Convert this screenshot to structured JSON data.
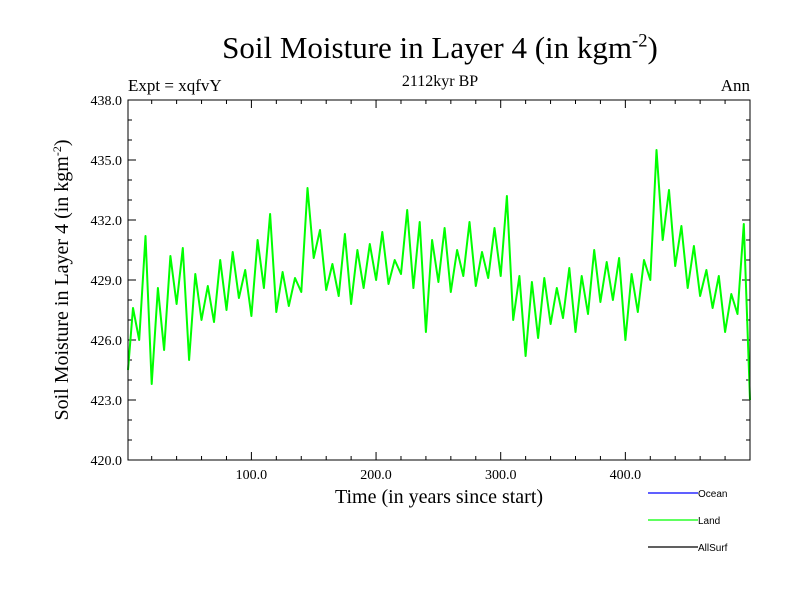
{
  "chart_data": {
    "type": "line",
    "title": "Soil Moisture in Layer 4 (in kgm",
    "title_sup": "-2",
    "title_end": ")",
    "subtitle": "2112kyr BP",
    "left_label": "Expt = xqfvY",
    "right_label": "Ann",
    "xlabel": "Time (in years since start)",
    "ylabel": "Soil Moisture in Layer 4 (in kgm",
    "ylabel_sup": "-2",
    "ylabel_end": ")",
    "xlim": [
      1,
      500
    ],
    "ylim": [
      420.0,
      438.0
    ],
    "xticks": [
      100.0,
      200.0,
      300.0,
      400.0
    ],
    "xtick_labels": [
      "100.0",
      "200.0",
      "300.0",
      "400.0"
    ],
    "yticks": [
      420.0,
      423.0,
      426.0,
      429.0,
      432.0,
      435.0,
      438.0
    ],
    "ytick_labels": [
      "420.0",
      "423.0",
      "426.0",
      "429.0",
      "432.0",
      "435.0",
      "438.0"
    ],
    "legend": [
      {
        "name": "Ocean",
        "color": "#0000ff"
      },
      {
        "name": "Land",
        "color": "#00ff00"
      },
      {
        "name": "AllSurf",
        "color": "#000000"
      }
    ],
    "series": [
      {
        "name": "Land",
        "color": "#00ff00",
        "x": [
          1,
          5,
          10,
          15,
          20,
          25,
          30,
          35,
          40,
          45,
          50,
          55,
          60,
          65,
          70,
          75,
          80,
          85,
          90,
          95,
          100,
          105,
          110,
          115,
          120,
          125,
          130,
          135,
          140,
          145,
          150,
          155,
          160,
          165,
          170,
          175,
          180,
          185,
          190,
          195,
          200,
          205,
          210,
          215,
          220,
          225,
          230,
          235,
          240,
          245,
          250,
          255,
          260,
          265,
          270,
          275,
          280,
          285,
          290,
          295,
          300,
          305,
          310,
          315,
          320,
          325,
          330,
          335,
          340,
          345,
          350,
          355,
          360,
          365,
          370,
          375,
          380,
          385,
          390,
          395,
          400,
          405,
          410,
          415,
          420,
          425,
          430,
          435,
          440,
          445,
          450,
          455,
          460,
          465,
          470,
          475,
          480,
          485,
          490,
          495,
          500
        ],
        "values": [
          424.5,
          427.6,
          426.0,
          431.2,
          423.8,
          428.6,
          425.5,
          430.2,
          427.8,
          430.6,
          425.0,
          429.3,
          427.0,
          428.7,
          426.9,
          430.0,
          427.5,
          430.4,
          428.1,
          429.5,
          427.2,
          431.0,
          428.6,
          432.3,
          427.4,
          429.4,
          427.7,
          429.1,
          428.4,
          433.6,
          430.1,
          431.5,
          428.5,
          429.8,
          428.2,
          431.3,
          427.8,
          430.5,
          428.6,
          430.8,
          429.0,
          431.4,
          428.8,
          430.0,
          429.3,
          432.5,
          428.6,
          431.9,
          426.4,
          431.0,
          428.9,
          431.6,
          428.4,
          430.5,
          429.2,
          431.9,
          428.7,
          430.4,
          429.1,
          431.6,
          429.2,
          433.2,
          427.0,
          429.2,
          425.2,
          428.9,
          426.1,
          429.1,
          426.8,
          428.6,
          427.1,
          429.6,
          426.4,
          429.2,
          427.3,
          430.5,
          427.9,
          429.9,
          428.0,
          430.1,
          426.0,
          429.3,
          427.4,
          430.0,
          429.0,
          435.5,
          431.0,
          433.5,
          429.7,
          431.7,
          428.6,
          430.7,
          428.2,
          429.5,
          427.6,
          429.2,
          426.4,
          428.3,
          427.3,
          431.8,
          423.0
        ]
      }
    ]
  }
}
